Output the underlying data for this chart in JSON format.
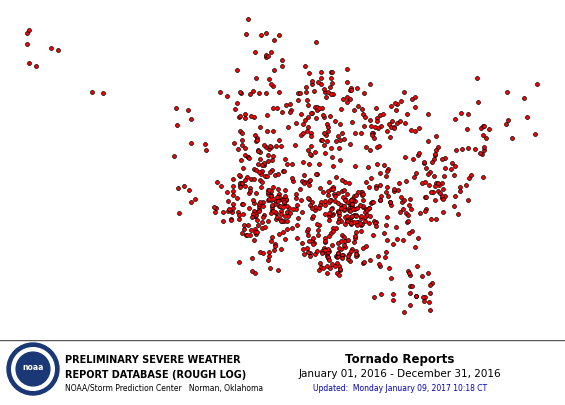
{
  "header_left_line1": "Preliminary Severe Weather",
  "header_left_line2": "Report Database (Rough Log)",
  "header_sub": "NOAA/Storm Prediction Center   Norman, Oklahoma",
  "header_right_line1": "Tornado Reports",
  "header_right_line2": "January 01, 2016 - December 31, 2016",
  "header_update": "Updated:  Monday January 09, 2017 10:18 CT",
  "footer_bg": "#d0d0d0",
  "dot_color": "#ff0000",
  "dot_edge": "#000000",
  "dot_size": 8,
  "map_extent": [
    -125,
    -66,
    23,
    50
  ]
}
